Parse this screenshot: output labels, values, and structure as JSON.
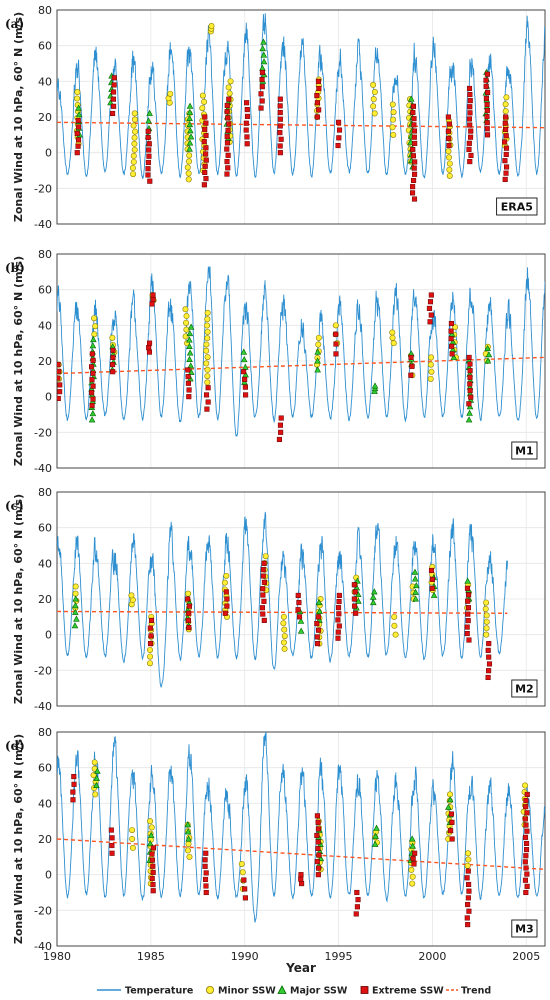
{
  "colors": {
    "line": "#2e8fd0",
    "minor_fill": "#ffee33",
    "minor_edge": "#8a7a00",
    "major_fill": "#33cc33",
    "major_edge": "#006600",
    "extreme_fill": "#dd1111",
    "extreme_edge": "#660000",
    "trend": "#ff5522",
    "grid": "#e6e6e6"
  },
  "figure": {
    "xlabel": "Year",
    "legend": {
      "position": "bottom",
      "items": [
        {
          "label": "Temperature",
          "marker": "line"
        },
        {
          "label": "Minor SSW",
          "marker": "circle"
        },
        {
          "label": "Major SSW",
          "marker": "triangle"
        },
        {
          "label": "Extreme SSW",
          "marker": "square"
        },
        {
          "label": "Trend",
          "marker": "dashed"
        }
      ]
    }
  },
  "chart_data": [
    {
      "type": "line",
      "panel_label": "(a)",
      "model_label": "ERA5",
      "ylabel": "Zonal Wind at 10 hPa, 60° N (m/s)",
      "xlim": [
        1980,
        2006
      ],
      "ylim": [
        -40,
        80
      ],
      "xticks": [
        1980,
        1985,
        1990,
        1995,
        2000,
        2005
      ],
      "yticks": [
        -40,
        -20,
        0,
        20,
        40,
        60,
        80
      ],
      "grid": true,
      "x_start": 1980,
      "x_end": 2006,
      "winter_peaks": [
        38,
        51,
        55,
        46,
        52,
        45,
        60,
        56,
        65,
        57,
        70,
        71,
        58,
        60,
        53,
        52,
        58,
        59,
        42,
        55,
        61,
        50,
        52,
        51,
        48,
        72
      ],
      "summer_lows": [
        -12,
        -13,
        -11,
        -12,
        -14,
        -11,
        -13,
        -12,
        -12,
        -13,
        -14,
        -11,
        -12,
        -13,
        -12,
        -11,
        -12,
        -13,
        -12,
        -14,
        -12,
        -13,
        -11,
        -12,
        -13,
        -12
      ],
      "trend": {
        "start": 17,
        "end": 14
      },
      "events": {
        "minor": [
          [
            1981.1,
            5,
            34
          ],
          [
            1984.1,
            -12,
            22
          ],
          [
            1986.0,
            28,
            33
          ],
          [
            1987.0,
            -15,
            22
          ],
          [
            1987.8,
            -10,
            32
          ],
          [
            1988.2,
            68,
            71
          ],
          [
            1989.2,
            6,
            40
          ],
          [
            1993.9,
            20,
            41
          ],
          [
            1996.9,
            22,
            38
          ],
          [
            1997.9,
            10,
            27
          ],
          [
            1998.8,
            -5,
            30
          ],
          [
            2000.9,
            -13,
            18
          ],
          [
            2003.9,
            4,
            31
          ]
        ],
        "major": [
          [
            1981.2,
            10,
            25
          ],
          [
            1982.9,
            28,
            43
          ],
          [
            1984.9,
            5,
            22
          ],
          [
            1987.1,
            2,
            26
          ],
          [
            1989.1,
            8,
            28
          ],
          [
            1991.0,
            40,
            62
          ],
          [
            1998.9,
            -8,
            30
          ],
          [
            2002.9,
            18,
            45
          ]
        ],
        "extreme": [
          [
            1981.1,
            0,
            18
          ],
          [
            1983.0,
            22,
            42
          ],
          [
            1984.9,
            -16,
            12
          ],
          [
            1987.9,
            -18,
            20
          ],
          [
            1989.1,
            -12,
            30
          ],
          [
            1990.1,
            5,
            28
          ],
          [
            1990.9,
            25,
            45
          ],
          [
            1991.9,
            0,
            30
          ],
          [
            1993.9,
            20,
            40
          ],
          [
            1995.0,
            4,
            17
          ],
          [
            1999.0,
            -26,
            26
          ],
          [
            2000.9,
            4,
            20
          ],
          [
            2002.0,
            -5,
            36
          ],
          [
            2002.9,
            10,
            44
          ],
          [
            2003.9,
            -15,
            20
          ]
        ]
      }
    },
    {
      "type": "line",
      "panel_label": "(b)",
      "model_label": "M1",
      "ylabel": "Zonal Wind at 10 hPa, 60° N (m/s)",
      "xlim": [
        1980,
        2006
      ],
      "ylim": [
        -40,
        80
      ],
      "xticks": [
        1980,
        1985,
        1990,
        1995,
        2000,
        2005
      ],
      "yticks": [
        -40,
        -20,
        0,
        20,
        40,
        60,
        80
      ],
      "grid": true,
      "x_start": 1980,
      "x_end": 2006,
      "winter_peaks": [
        55,
        50,
        48,
        45,
        52,
        62,
        48,
        62,
        72,
        65,
        50,
        60,
        52,
        40,
        40,
        52,
        50,
        55,
        58,
        60,
        45,
        57,
        58,
        50,
        45,
        68
      ],
      "summer_lows": [
        -13,
        -12,
        -11,
        -13,
        -12,
        -11,
        -14,
        -12,
        -13,
        -22,
        -12,
        -13,
        -12,
        -11,
        -12,
        -13,
        -12,
        -11,
        -13,
        -12,
        -11,
        -12,
        -13,
        -12,
        -14,
        -13
      ],
      "trend": {
        "start": 13,
        "end": 22
      },
      "events": {
        "minor": [
          [
            1980.1,
            10,
            18
          ],
          [
            1982.0,
            35,
            44
          ],
          [
            1983.0,
            25,
            33
          ],
          [
            1985.1,
            54,
            57
          ],
          [
            1986.9,
            30,
            49
          ],
          [
            1988.0,
            8,
            47
          ],
          [
            1993.9,
            18,
            33
          ],
          [
            1994.9,
            30,
            40
          ],
          [
            1997.9,
            30,
            36
          ],
          [
            1998.9,
            12,
            23
          ],
          [
            1999.9,
            10,
            22
          ],
          [
            2001.2,
            22,
            39
          ],
          [
            2002.9,
            20,
            28
          ]
        ],
        "major": [
          [
            1981.9,
            -13,
            32
          ],
          [
            1983.0,
            15,
            28
          ],
          [
            1987.1,
            10,
            39
          ],
          [
            1990.0,
            8,
            25
          ],
          [
            1993.9,
            15,
            25
          ],
          [
            1996.9,
            3,
            6
          ],
          [
            1998.9,
            18,
            24
          ],
          [
            2001.1,
            22,
            35
          ],
          [
            2002.0,
            -13,
            20
          ],
          [
            2003.0,
            20,
            27
          ]
        ],
        "extreme": [
          [
            1980.1,
            -1,
            18
          ],
          [
            1981.9,
            -5,
            24
          ],
          [
            1983.0,
            14,
            26
          ],
          [
            1984.9,
            25,
            30
          ],
          [
            1985.1,
            52,
            57
          ],
          [
            1987.0,
            0,
            15
          ],
          [
            1988.0,
            -7,
            5
          ],
          [
            1990.0,
            1,
            14
          ],
          [
            1991.9,
            -24,
            -12
          ],
          [
            1994.9,
            24,
            35
          ],
          [
            1998.9,
            12,
            22
          ],
          [
            1999.9,
            42,
            57
          ],
          [
            2001.0,
            24,
            41
          ],
          [
            2002.0,
            -4,
            22
          ]
        ]
      }
    },
    {
      "type": "line",
      "panel_label": "(c)",
      "model_label": "M2",
      "ylabel": "Zonal Wind at 10 hPa, 60° N (m/s)",
      "xlim": [
        1980,
        2006
      ],
      "ylim": [
        -40,
        80
      ],
      "xticks": [
        1980,
        1985,
        1990,
        1995,
        2000,
        2005
      ],
      "yticks": [
        -40,
        -20,
        0,
        20,
        40,
        60,
        80
      ],
      "grid": true,
      "x_start": 1980,
      "x_end": 2004,
      "winter_peaks": [
        52,
        48,
        50,
        45,
        52,
        40,
        55,
        50,
        55,
        52,
        62,
        62,
        40,
        45,
        50,
        45,
        55,
        60,
        48,
        52,
        52,
        60,
        55,
        42
      ],
      "summer_lows": [
        -12,
        -13,
        -12,
        -15,
        -13,
        -30,
        -14,
        -12,
        -13,
        -13,
        -14,
        -20,
        -12,
        -13,
        -15,
        -12,
        -13,
        -12,
        -13,
        -14,
        -12,
        -13,
        -12,
        -10
      ],
      "trend": {
        "start": 13,
        "end": 12
      },
      "events": {
        "minor": [
          [
            1981.0,
            15,
            27
          ],
          [
            1984.0,
            17,
            22
          ],
          [
            1985.0,
            -16,
            10
          ],
          [
            1987.0,
            3,
            23
          ],
          [
            1989.0,
            10,
            33
          ],
          [
            1991.1,
            25,
            44
          ],
          [
            1992.1,
            -8,
            10
          ],
          [
            1994.0,
            -5,
            20
          ],
          [
            1995.9,
            20,
            32
          ],
          [
            1998.0,
            0,
            10
          ],
          [
            1999.0,
            20,
            27
          ],
          [
            2000.0,
            25,
            38
          ],
          [
            2001.9,
            15,
            28
          ],
          [
            2002.9,
            0,
            18
          ]
        ],
        "major": [
          [
            1981.0,
            5,
            20
          ],
          [
            1987.0,
            5,
            18
          ],
          [
            1993.0,
            2,
            13
          ],
          [
            1994.0,
            8,
            18
          ],
          [
            1996.0,
            15,
            30
          ],
          [
            1996.9,
            18,
            24
          ],
          [
            1999.1,
            20,
            35
          ],
          [
            2000.1,
            22,
            32
          ],
          [
            2001.9,
            20,
            30
          ]
        ],
        "extreme": [
          [
            1985.0,
            -5,
            8
          ],
          [
            1987.0,
            4,
            20
          ],
          [
            1989.0,
            12,
            24
          ],
          [
            1991.0,
            8,
            40
          ],
          [
            1992.9,
            10,
            22
          ],
          [
            1993.9,
            -5,
            10
          ],
          [
            1995.0,
            -2,
            22
          ],
          [
            1995.9,
            12,
            28
          ],
          [
            2000.0,
            26,
            36
          ],
          [
            2001.9,
            -3,
            26
          ],
          [
            2003.0,
            -24,
            -5
          ]
        ]
      }
    },
    {
      "type": "line",
      "panel_label": "(d)",
      "model_label": "M3",
      "ylabel": "Zonal Wind at 10 hPa, 60° N (m/s)",
      "xlim": [
        1980,
        2006
      ],
      "ylim": [
        -40,
        80
      ],
      "xticks": [
        1980,
        1985,
        1990,
        1995,
        2000,
        2005
      ],
      "yticks": [
        -40,
        -20,
        0,
        20,
        40,
        60,
        80
      ],
      "grid": true,
      "x_start": 1980,
      "x_end": 2006,
      "winter_peaks": [
        62,
        62,
        65,
        72,
        52,
        55,
        60,
        65,
        50,
        45,
        52,
        78,
        52,
        55,
        58,
        58,
        52,
        55,
        52,
        55,
        45,
        62,
        52,
        47,
        48,
        45
      ],
      "summer_lows": [
        -12,
        -11,
        -13,
        -12,
        -14,
        -13,
        -12,
        -12,
        -13,
        -13,
        -26,
        -12,
        -13,
        -12,
        -13,
        -12,
        -12,
        -14,
        -12,
        -13,
        -11,
        -12,
        -13,
        -12,
        -13,
        -12
      ],
      "trend": {
        "start": 20,
        "end": 3
      },
      "events": {
        "minor": [
          [
            1982.0,
            45,
            63
          ],
          [
            1984.0,
            15,
            25
          ],
          [
            1985.0,
            -5,
            30
          ],
          [
            1987.0,
            10,
            28
          ],
          [
            1989.9,
            -8,
            6
          ],
          [
            1994.0,
            3,
            30
          ],
          [
            1997.0,
            18,
            24
          ],
          [
            1998.9,
            -5,
            18
          ],
          [
            2000.9,
            20,
            45
          ],
          [
            2001.9,
            5,
            12
          ],
          [
            2004.9,
            28,
            50
          ]
        ],
        "major": [
          [
            1982.1,
            50,
            58
          ],
          [
            1985.0,
            8,
            22
          ],
          [
            1987.0,
            20,
            28
          ],
          [
            1994.0,
            5,
            25
          ],
          [
            1997.0,
            17,
            26
          ],
          [
            1998.9,
            8,
            20
          ],
          [
            2000.9,
            25,
            42
          ]
        ],
        "extreme": [
          [
            1980.9,
            42,
            55
          ],
          [
            1982.9,
            12,
            25
          ],
          [
            1985.1,
            -9,
            15
          ],
          [
            1987.9,
            -10,
            12
          ],
          [
            1990.0,
            -13,
            -3
          ],
          [
            1993.0,
            -5,
            0
          ],
          [
            1993.9,
            0,
            33
          ],
          [
            1996.0,
            -22,
            -10
          ],
          [
            1999.0,
            6,
            12
          ],
          [
            2001.0,
            20,
            34
          ],
          [
            2001.9,
            -28,
            2
          ],
          [
            2005.0,
            -10,
            45
          ]
        ]
      }
    }
  ]
}
